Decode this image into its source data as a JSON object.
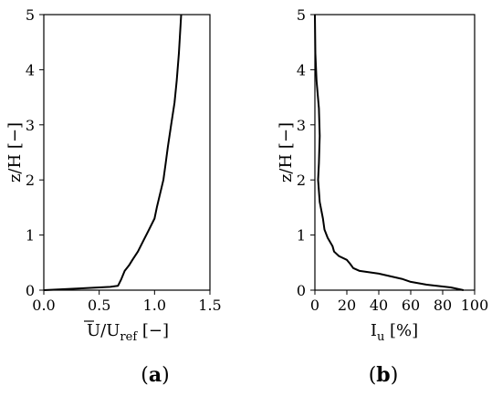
{
  "chart_data": [
    {
      "type": "line",
      "panel_label": "(a)",
      "xlabel": "U/U",
      "xlabel_sub": "ref",
      "xlabel_unit": "[−]",
      "ylabel": "z/H [−]",
      "xlim": [
        0.0,
        1.5
      ],
      "ylim": [
        0,
        5
      ],
      "xticks": [
        0.0,
        0.5,
        1.0,
        1.5
      ],
      "xtick_labels": [
        "0.0",
        "0.5",
        "1.0",
        "1.5"
      ],
      "yticks": [
        0,
        1,
        2,
        3,
        4,
        5
      ],
      "ytick_labels": [
        "0",
        "1",
        "2",
        "3",
        "4",
        "5"
      ],
      "series": [
        {
          "x": [
            0.0,
            0.3,
            0.6,
            0.67,
            0.7,
            0.73,
            0.77,
            0.8,
            0.85,
            0.9,
            0.95,
            1.0,
            1.02,
            1.05,
            1.08,
            1.1,
            1.12,
            1.15,
            1.18,
            1.2,
            1.22,
            1.24
          ],
          "y": [
            0.0,
            0.03,
            0.06,
            0.08,
            0.2,
            0.35,
            0.45,
            0.55,
            0.7,
            0.9,
            1.1,
            1.3,
            1.5,
            1.75,
            2.0,
            2.3,
            2.6,
            3.0,
            3.4,
            3.8,
            4.3,
            5.0
          ]
        }
      ],
      "grid": false
    },
    {
      "type": "line",
      "panel_label": "(b)",
      "xlabel": "I",
      "xlabel_sub": "u",
      "xlabel_unit": "[%]",
      "ylabel": "z/H [−]",
      "xlim": [
        0,
        100
      ],
      "ylim": [
        0,
        5
      ],
      "xticks": [
        0,
        20,
        40,
        60,
        80,
        100
      ],
      "xtick_labels": [
        "0",
        "20",
        "40",
        "60",
        "80",
        "100"
      ],
      "yticks": [
        0,
        1,
        2,
        3,
        4,
        5
      ],
      "ytick_labels": [
        "0",
        "1",
        "2",
        "3",
        "4",
        "5"
      ],
      "series": [
        {
          "x": [
            93,
            85,
            70,
            60,
            55,
            40,
            28,
            24,
            22,
            20,
            15,
            12,
            11,
            8,
            6,
            5,
            3,
            2,
            2.5,
            3,
            2.5,
            1,
            0.3,
            0
          ],
          "y": [
            0,
            0.05,
            0.1,
            0.15,
            0.2,
            0.3,
            0.35,
            0.4,
            0.48,
            0.55,
            0.62,
            0.7,
            0.8,
            0.95,
            1.1,
            1.3,
            1.6,
            2.0,
            2.3,
            2.8,
            3.3,
            3.8,
            4.3,
            5.0
          ]
        }
      ],
      "grid": false
    }
  ]
}
